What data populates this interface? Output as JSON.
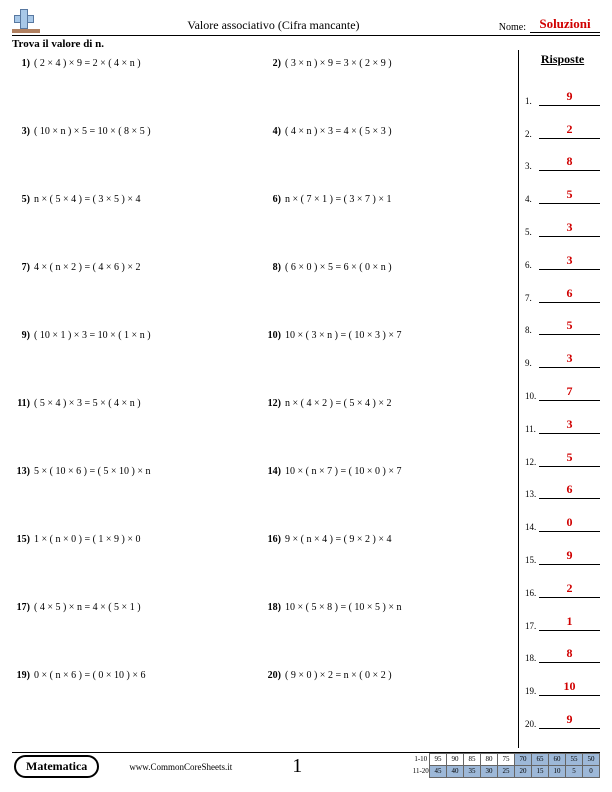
{
  "header": {
    "title": "Valore associativo (Cifra mancante)",
    "name_label": "Nome:",
    "name_value": "Soluzioni"
  },
  "instruction": "Trova il valore di n.",
  "answers_title": "Risposte",
  "problems": [
    {
      "num": "1)",
      "eq": "( 2 × 4 ) × 9 = 2 × ( 4 × n )"
    },
    {
      "num": "2)",
      "eq": "( 3 × n ) × 9 = 3 × ( 2 × 9 )"
    },
    {
      "num": "3)",
      "eq": "( 10 × n ) × 5 = 10 × ( 8 × 5 )"
    },
    {
      "num": "4)",
      "eq": "( 4 × n ) × 3 = 4 × ( 5 × 3 )"
    },
    {
      "num": "5)",
      "eq": "n × ( 5 × 4 ) = ( 3 × 5 ) × 4"
    },
    {
      "num": "6)",
      "eq": "n × ( 7 × 1 ) = ( 3 × 7 ) × 1"
    },
    {
      "num": "7)",
      "eq": "4 × ( n × 2 ) = ( 4 × 6 ) × 2"
    },
    {
      "num": "8)",
      "eq": "( 6 × 0 ) × 5 = 6 × ( 0 × n )"
    },
    {
      "num": "9)",
      "eq": "( 10 × 1 ) × 3 = 10 × ( 1 × n )"
    },
    {
      "num": "10)",
      "eq": "10 × ( 3 × n ) = ( 10 × 3 ) × 7"
    },
    {
      "num": "11)",
      "eq": "( 5 × 4 ) × 3 = 5 × ( 4 × n )"
    },
    {
      "num": "12)",
      "eq": "n × ( 4 × 2 ) = ( 5 × 4 ) × 2"
    },
    {
      "num": "13)",
      "eq": "5 × ( 10 × 6 ) = ( 5 × 10 ) × n"
    },
    {
      "num": "14)",
      "eq": "10 × ( n × 7 ) = ( 10 × 0 ) × 7"
    },
    {
      "num": "15)",
      "eq": "1 × ( n × 0 ) = ( 1 × 9 ) × 0"
    },
    {
      "num": "16)",
      "eq": "9 × ( n × 4 ) = ( 9 × 2 ) × 4"
    },
    {
      "num": "17)",
      "eq": "( 4 × 5 ) × n = 4 × ( 5 × 1 )"
    },
    {
      "num": "18)",
      "eq": "10 × ( 5 × 8 ) = ( 10 × 5 ) × n"
    },
    {
      "num": "19)",
      "eq": "0 × ( n × 6 ) = ( 0 × 10 ) × 6"
    },
    {
      "num": "20)",
      "eq": "( 9 × 0 ) × 2 = n × ( 0 × 2 )"
    }
  ],
  "answers": [
    {
      "num": "1.",
      "val": "9"
    },
    {
      "num": "2.",
      "val": "2"
    },
    {
      "num": "3.",
      "val": "8"
    },
    {
      "num": "4.",
      "val": "5"
    },
    {
      "num": "5.",
      "val": "3"
    },
    {
      "num": "6.",
      "val": "3"
    },
    {
      "num": "7.",
      "val": "6"
    },
    {
      "num": "8.",
      "val": "5"
    },
    {
      "num": "9.",
      "val": "3"
    },
    {
      "num": "10.",
      "val": "7"
    },
    {
      "num": "11.",
      "val": "3"
    },
    {
      "num": "12.",
      "val": "5"
    },
    {
      "num": "13.",
      "val": "6"
    },
    {
      "num": "14.",
      "val": "0"
    },
    {
      "num": "15.",
      "val": "9"
    },
    {
      "num": "16.",
      "val": "2"
    },
    {
      "num": "17.",
      "val": "1"
    },
    {
      "num": "18.",
      "val": "8"
    },
    {
      "num": "19.",
      "val": "10"
    },
    {
      "num": "20.",
      "val": "9"
    }
  ],
  "footer": {
    "subject": "Matematica",
    "site": "www.CommonCoreSheets.it",
    "page_number": "1",
    "score_rows": [
      {
        "label": "1-10",
        "cells": [
          "95",
          "90",
          "85",
          "80",
          "75",
          "70",
          "65",
          "60",
          "55",
          "50"
        ],
        "shaded_from": 5
      },
      {
        "label": "11-20",
        "cells": [
          "45",
          "40",
          "35",
          "30",
          "25",
          "20",
          "15",
          "10",
          "5",
          "0"
        ],
        "shaded_from": 0
      }
    ]
  }
}
